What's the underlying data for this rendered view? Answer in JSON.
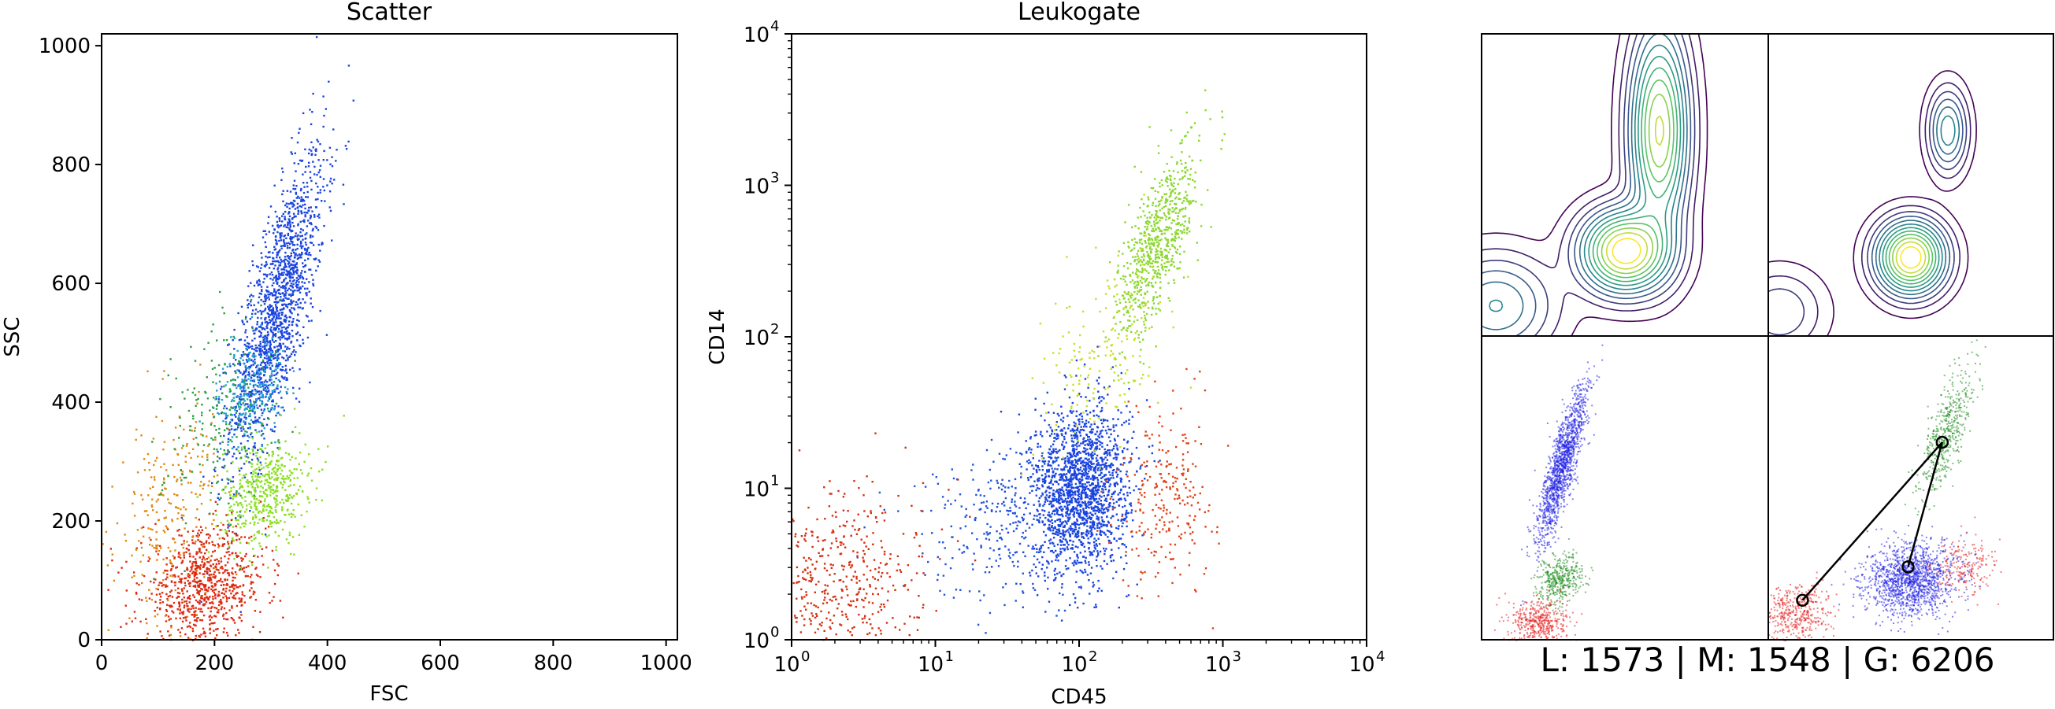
{
  "footer": {
    "text": "L: 1573 | M: 1548 | G: 6206"
  },
  "chart_data": [
    {
      "type": "scatter",
      "title": "Scatter",
      "xlabel": "FSC",
      "ylabel": "SSC",
      "xlim": [
        0,
        1020
      ],
      "ylim": [
        0,
        1020
      ],
      "x_ticks": [
        "0",
        "200",
        "400",
        "600",
        "800",
        "1000"
      ],
      "y_ticks": [
        "0",
        "200",
        "400",
        "600",
        "800",
        "1000"
      ],
      "series": [
        {
          "color": "#1a44e0",
          "center": [
            310,
            560
          ],
          "spread": [
            42,
            130
          ],
          "corr": 0.75,
          "count": 1600
        },
        {
          "color": "#22a0d0",
          "center": [
            262,
            420
          ],
          "spread": [
            30,
            45
          ],
          "corr": 0.3,
          "count": 250
        },
        {
          "color": "#8ae020",
          "center": [
            290,
            250
          ],
          "spread": [
            38,
            45
          ],
          "corr": 0.2,
          "count": 500
        },
        {
          "color": "#dd2a10",
          "center": [
            180,
            90
          ],
          "spread": [
            55,
            48
          ],
          "corr": 0.1,
          "count": 800
        },
        {
          "color": "#e08a10",
          "center": [
            120,
            220
          ],
          "spread": [
            45,
            90
          ],
          "corr": 0.3,
          "count": 260
        },
        {
          "color": "#2aa040",
          "center": [
            210,
            380
          ],
          "spread": [
            50,
            90
          ],
          "corr": 0.3,
          "count": 200
        }
      ]
    },
    {
      "type": "scatter",
      "title": "Leukogate",
      "xlabel": "CD45",
      "ylabel": "CD14",
      "xscale": "log",
      "yscale": "log",
      "xlim": [
        1,
        10000
      ],
      "ylim": [
        1,
        10000
      ],
      "x_ticks": [
        "10",
        "10",
        "10",
        "10",
        "10"
      ],
      "x_tick_exps": [
        "0",
        "1",
        "2",
        "3",
        "4"
      ],
      "y_ticks": [
        "10",
        "10",
        "10",
        "10",
        "10"
      ],
      "y_tick_exps": [
        "0",
        "1",
        "2",
        "3",
        "4"
      ],
      "series": [
        {
          "color": "#1a44e0",
          "center": [
            100,
            10
          ],
          "spread": [
            0.17,
            0.28
          ],
          "corr": 0.1,
          "count": 1800
        },
        {
          "color": "#2255d8",
          "center": [
            30,
            6
          ],
          "spread": [
            0.35,
            0.3
          ],
          "corr": 0.2,
          "count": 300
        },
        {
          "color": "#8cd830",
          "center": [
            350,
            420
          ],
          "spread": [
            0.14,
            0.32
          ],
          "corr": 0.7,
          "count": 700
        },
        {
          "color": "#c8e020",
          "center": [
            150,
            80
          ],
          "spread": [
            0.22,
            0.35
          ],
          "corr": 0.6,
          "count": 180
        },
        {
          "color": "#d43010",
          "center": [
            2,
            2.5
          ],
          "spread": [
            0.3,
            0.3
          ],
          "corr": 0.1,
          "count": 500
        },
        {
          "color": "#e04418",
          "center": [
            400,
            9
          ],
          "spread": [
            0.17,
            0.3
          ],
          "corr": 0.1,
          "count": 250
        }
      ]
    },
    {
      "type": "contour",
      "panel": "top-left",
      "peaks": [
        {
          "center": [
            0.5,
            0.28
          ],
          "sigma": [
            0.09,
            0.08
          ],
          "weight": 1.0
        },
        {
          "center": [
            0.62,
            0.68
          ],
          "sigma": [
            0.06,
            0.2
          ],
          "weight": 0.8
        },
        {
          "center": [
            0.05,
            0.1
          ],
          "sigma": [
            0.12,
            0.1
          ],
          "weight": 0.3
        }
      ],
      "levels": 12
    },
    {
      "type": "contour",
      "panel": "top-right",
      "peaks": [
        {
          "center": [
            0.5,
            0.26
          ],
          "sigma": [
            0.07,
            0.07
          ],
          "weight": 1.0
        },
        {
          "center": [
            0.63,
            0.68
          ],
          "sigma": [
            0.04,
            0.08
          ],
          "weight": 0.35
        },
        {
          "center": [
            0.04,
            0.08
          ],
          "sigma": [
            0.09,
            0.08
          ],
          "weight": 0.15
        }
      ],
      "levels": 12
    },
    {
      "type": "scatter",
      "panel": "bottom-left",
      "series": [
        {
          "color": "#1f1fe6",
          "center": [
            0.28,
            0.58
          ],
          "spread": [
            0.045,
            0.13
          ],
          "corr": 0.85,
          "count": 1400
        },
        {
          "color": "#1e8c1e",
          "center": [
            0.27,
            0.2
          ],
          "spread": [
            0.04,
            0.04
          ],
          "corr": 0.2,
          "count": 400
        },
        {
          "color": "#e61e1e",
          "center": [
            0.2,
            0.06
          ],
          "spread": [
            0.05,
            0.04
          ],
          "corr": 0.0,
          "count": 450
        }
      ]
    },
    {
      "type": "scatter",
      "panel": "bottom-right",
      "series": [
        {
          "color": "#1f1fe6",
          "center": [
            0.5,
            0.2
          ],
          "spread": [
            0.08,
            0.06
          ],
          "corr": 0.1,
          "count": 1400
        },
        {
          "color": "#1e8c1e",
          "center": [
            0.62,
            0.68
          ],
          "spread": [
            0.05,
            0.11
          ],
          "corr": 0.75,
          "count": 500
        },
        {
          "color": "#e61e1e",
          "center": [
            0.1,
            0.09
          ],
          "spread": [
            0.06,
            0.05
          ],
          "corr": 0.1,
          "count": 450
        },
        {
          "color": "#e61e1e",
          "center": [
            0.68,
            0.24
          ],
          "spread": [
            0.06,
            0.05
          ],
          "corr": 0.1,
          "count": 200
        }
      ],
      "path": [
        [
          0.12,
          0.13
        ],
        [
          0.61,
          0.65
        ],
        [
          0.49,
          0.24
        ]
      ]
    }
  ]
}
